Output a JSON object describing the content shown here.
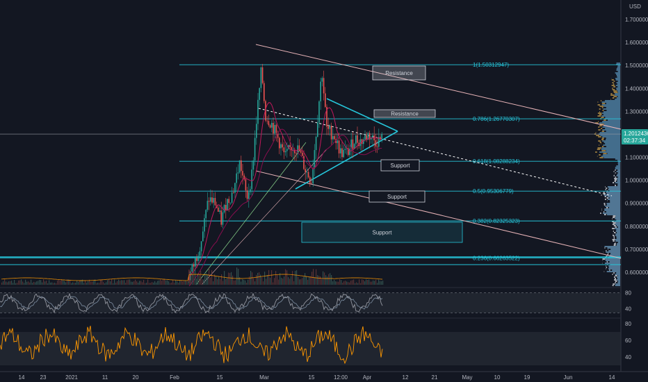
{
  "chart_data": [
    {
      "type": "candlestick",
      "currency": "USD",
      "ylim": [
        0.55,
        1.75
      ],
      "y_ticks": [
        "1.70000000",
        "1.60000000",
        "1.50000000",
        "1.40000000",
        "1.30000000",
        "1.20000000",
        "1.10000000",
        "1.00000000",
        "0.90000000",
        "0.80000000",
        "0.70000000",
        "0.60000000"
      ],
      "y_tick_values": [
        1.7,
        1.6,
        1.5,
        1.4,
        1.3,
        1.2,
        1.1,
        1.0,
        0.9,
        0.8,
        0.7,
        0.6
      ],
      "x_ticks": [
        "14",
        "23",
        "2021",
        "11",
        "20",
        "Feb",
        "15",
        "Mar",
        "15",
        "12:00",
        "Apr",
        "12",
        "21",
        "May",
        "10",
        "19",
        "Jun",
        "14"
      ],
      "current_price": "1.20124361",
      "countdown": "02:37:34",
      "fib_levels": [
        {
          "label": "1(1.50312947)",
          "value": 1.50312947
        },
        {
          "label": "0.786(1.26770307)",
          "value": 1.26770307
        },
        {
          "label": "0.618(1.08288234)",
          "value": 1.08288234
        },
        {
          "label": "0.5(0.95306779)",
          "value": 0.95306779
        },
        {
          "label": "0.382(0.82325323)",
          "value": 0.82325323
        },
        {
          "label": "0.236(0.66263522)",
          "value": 0.66263522
        }
      ],
      "annotations": [
        {
          "label": "Resistance",
          "value": 1.47
        },
        {
          "label": "Resistance",
          "value": 1.29
        },
        {
          "label": "Support",
          "value": 1.08
        },
        {
          "label": "Support",
          "value": 0.93
        },
        {
          "label": "Support",
          "value": 0.79
        }
      ],
      "colors": {
        "background": "#131722",
        "fib": "#26c6da",
        "up": "#26a69a",
        "down": "#ef5350",
        "trend": "#e8b4b8",
        "ma_red": "#c2185b",
        "ma_green": "#81c784",
        "volume_profile_up": "#4c7c9f",
        "volume_profile_down": "#a08040"
      }
    },
    {
      "type": "line",
      "name_hint": "oscillator-1",
      "ylim": [
        20,
        90
      ],
      "y_ticks": [
        "80",
        "40"
      ],
      "y_tick_values": [
        80,
        40
      ]
    },
    {
      "type": "line",
      "name_hint": "oscillator-2",
      "ylim": [
        25,
        85
      ],
      "y_ticks": [
        "80",
        "60",
        "40"
      ],
      "y_tick_values": [
        80,
        60,
        40
      ]
    }
  ]
}
